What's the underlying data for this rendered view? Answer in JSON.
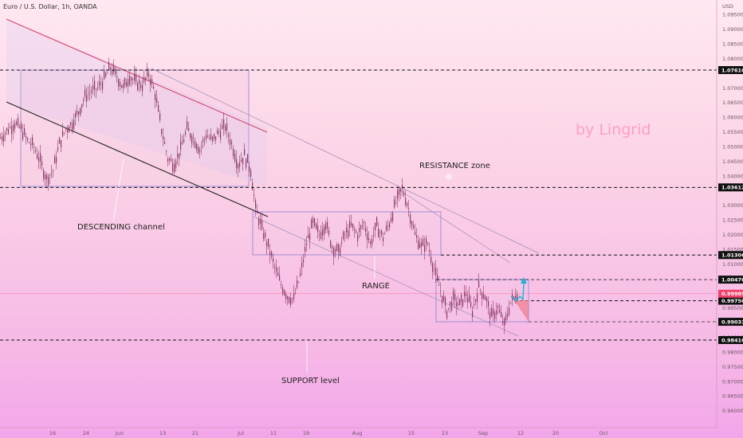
{
  "header": {
    "title": "Euro / U.S. Dollar, 1h, OANDA"
  },
  "watermark": {
    "text": "by Lingrid"
  },
  "colors": {
    "candle": "#8a3a66",
    "resistance_fill": "#f1c6df",
    "range_stroke": "#8f7fd4",
    "channel_upper": "#d0466e",
    "channel_lower": "#222222",
    "current_price": "#f0416a",
    "projection": "#16b3d8"
  },
  "chart_data": {
    "type": "candlestick",
    "title": "Euro / U.S. Dollar, 1h, OANDA",
    "xlabel": "",
    "ylabel": "USD",
    "ylim": [
      0.95675,
      1.10206
    ],
    "grid": false,
    "x_tick_labels": [
      "16",
      "24",
      "Jun",
      "13",
      "21",
      "Jul",
      "11",
      "19",
      "Aug",
      "15",
      "23",
      "Sep",
      "12",
      "20",
      "Oct"
    ],
    "y_tick_labels": [
      "1.09500",
      "1.09000",
      "1.08500",
      "1.08000",
      "1.07000",
      "1.06500",
      "1.06000",
      "1.05500",
      "1.05000",
      "1.04500",
      "1.04000",
      "1.03000",
      "1.02500",
      "1.02000",
      "1.01500",
      "1.01000",
      "0.99500",
      "0.98500",
      "0.98000",
      "0.97500",
      "0.97000",
      "0.96500",
      "0.96000"
    ],
    "axis_unit": "USD",
    "price_levels": [
      {
        "label": "1.07610",
        "value": 1.0761
      },
      {
        "label": "1.03612",
        "value": 1.03612
      },
      {
        "label": "1.01306",
        "value": 1.01306
      },
      {
        "label": "1.00470",
        "value": 1.0047
      },
      {
        "label": "0.99750",
        "value": 0.9975
      },
      {
        "label": "0.99033",
        "value": 0.99033
      },
      {
        "label": "0.98410",
        "value": 0.9841
      }
    ],
    "current_price": {
      "label": "0.99989",
      "value": 0.99989
    },
    "series": [
      {
        "values": [
          {
            "x": 0,
            "close": 1.053
          },
          {
            "x": 10,
            "close": 1.056
          },
          {
            "x": 18,
            "close": 1.058
          },
          {
            "x": 26,
            "close": 1.056
          },
          {
            "x": 34,
            "close": 1.052
          },
          {
            "x": 42,
            "close": 1.05
          },
          {
            "x": 50,
            "close": 1.045
          },
          {
            "x": 58,
            "close": 1.039
          },
          {
            "x": 66,
            "close": 1.042
          },
          {
            "x": 74,
            "close": 1.051
          },
          {
            "x": 82,
            "close": 1.056
          },
          {
            "x": 90,
            "close": 1.058
          },
          {
            "x": 98,
            "close": 1.062
          },
          {
            "x": 106,
            "close": 1.067
          },
          {
            "x": 114,
            "close": 1.069
          },
          {
            "x": 122,
            "close": 1.07
          },
          {
            "x": 130,
            "close": 1.073
          },
          {
            "x": 138,
            "close": 1.077
          },
          {
            "x": 146,
            "close": 1.074
          },
          {
            "x": 154,
            "close": 1.07
          },
          {
            "x": 162,
            "close": 1.074
          },
          {
            "x": 170,
            "close": 1.072
          },
          {
            "x": 178,
            "close": 1.071
          },
          {
            "x": 186,
            "close": 1.075
          },
          {
            "x": 194,
            "close": 1.068
          },
          {
            "x": 202,
            "close": 1.056
          },
          {
            "x": 210,
            "close": 1.046
          },
          {
            "x": 218,
            "close": 1.044
          },
          {
            "x": 226,
            "close": 1.049
          },
          {
            "x": 234,
            "close": 1.056
          },
          {
            "x": 242,
            "close": 1.053
          },
          {
            "x": 250,
            "close": 1.049
          },
          {
            "x": 258,
            "close": 1.054
          },
          {
            "x": 266,
            "close": 1.052
          },
          {
            "x": 274,
            "close": 1.055
          },
          {
            "x": 282,
            "close": 1.057
          },
          {
            "x": 290,
            "close": 1.051
          },
          {
            "x": 298,
            "close": 1.044
          },
          {
            "x": 306,
            "close": 1.047
          },
          {
            "x": 314,
            "close": 1.042
          },
          {
            "x": 320,
            "close": 1.029
          },
          {
            "x": 328,
            "close": 1.022
          },
          {
            "x": 336,
            "close": 1.016
          },
          {
            "x": 344,
            "close": 1.009
          },
          {
            "x": 352,
            "close": 1.003
          },
          {
            "x": 360,
            "close": 0.999
          },
          {
            "x": 368,
            "close": 0.998
          },
          {
            "x": 376,
            "close": 1.006
          },
          {
            "x": 384,
            "close": 1.017
          },
          {
            "x": 392,
            "close": 1.024
          },
          {
            "x": 400,
            "close": 1.02
          },
          {
            "x": 408,
            "close": 1.024
          },
          {
            "x": 416,
            "close": 1.016
          },
          {
            "x": 424,
            "close": 1.014
          },
          {
            "x": 432,
            "close": 1.02
          },
          {
            "x": 440,
            "close": 1.023
          },
          {
            "x": 448,
            "close": 1.02
          },
          {
            "x": 456,
            "close": 1.024
          },
          {
            "x": 464,
            "close": 1.017
          },
          {
            "x": 472,
            "close": 1.023
          },
          {
            "x": 480,
            "close": 1.019
          },
          {
            "x": 488,
            "close": 1.024
          },
          {
            "x": 496,
            "close": 1.031
          },
          {
            "x": 504,
            "close": 1.036
          },
          {
            "x": 512,
            "close": 1.029
          },
          {
            "x": 520,
            "close": 1.02
          },
          {
            "x": 528,
            "close": 1.016
          },
          {
            "x": 536,
            "close": 1.017
          },
          {
            "x": 544,
            "close": 1.008
          },
          {
            "x": 552,
            "close": 1.001
          },
          {
            "x": 560,
            "close": 0.994
          },
          {
            "x": 568,
            "close": 0.998
          },
          {
            "x": 576,
            "close": 0.996
          },
          {
            "x": 584,
            "close": 1.0
          },
          {
            "x": 592,
            "close": 0.994
          },
          {
            "x": 600,
            "close": 1.002
          },
          {
            "x": 608,
            "close": 0.999
          },
          {
            "x": 616,
            "close": 0.992
          },
          {
            "x": 624,
            "close": 0.995
          },
          {
            "x": 632,
            "close": 0.989
          },
          {
            "x": 640,
            "close": 0.997
          },
          {
            "x": 648,
            "close": 0.9999
          }
        ]
      }
    ],
    "annotations": [
      "DESCENDING channel",
      "RESISTANCE zone",
      "RANGE",
      "SUPPORT level"
    ]
  }
}
